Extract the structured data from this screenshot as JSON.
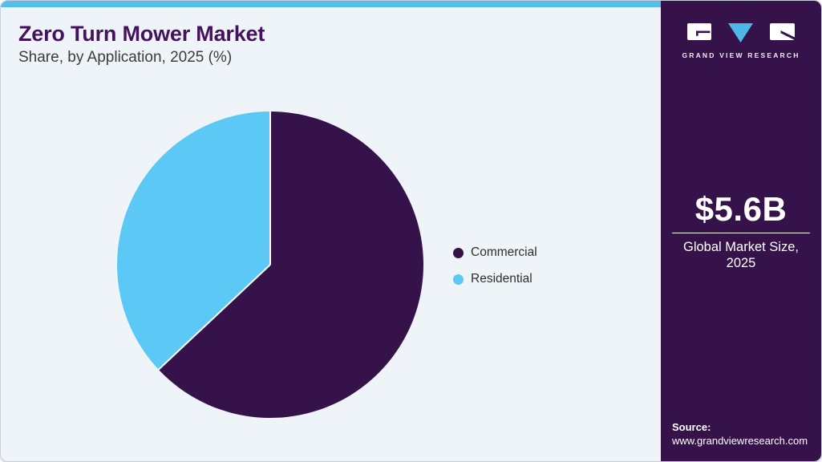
{
  "header": {
    "title": "Zero Turn Mower Market",
    "subtitle": "Share, by Application, 2025 (%)"
  },
  "chart_data": {
    "type": "pie",
    "title": "Zero Turn Mower Market Share, by Application, 2025 (%)",
    "unit": "%",
    "start_angle_deg": 0,
    "direction": "clockwise",
    "legend_position": "right",
    "grid": false,
    "slices": [
      {
        "label": "Commercial",
        "value": 63,
        "color": "#351249"
      },
      {
        "label": "Residential",
        "value": 37,
        "color": "#5CC8F5"
      }
    ]
  },
  "sidebar": {
    "logo": {
      "brand": "GRAND VIEW RESEARCH",
      "letters": "GVR"
    },
    "market_size": {
      "value": "$5.6B",
      "label_line1": "Global Market Size,",
      "label_line2": "2025"
    },
    "source": {
      "label": "Source:",
      "url": "www.grandviewresearch.com"
    }
  },
  "colors": {
    "accent_stripe": "#55BDEB",
    "sidebar_bg": "#351249",
    "title_text": "#45125E",
    "card_bg": "#EFF4F9",
    "logo_triangle": "#4EB7E6",
    "slice_separator": "#FFFFFF"
  }
}
